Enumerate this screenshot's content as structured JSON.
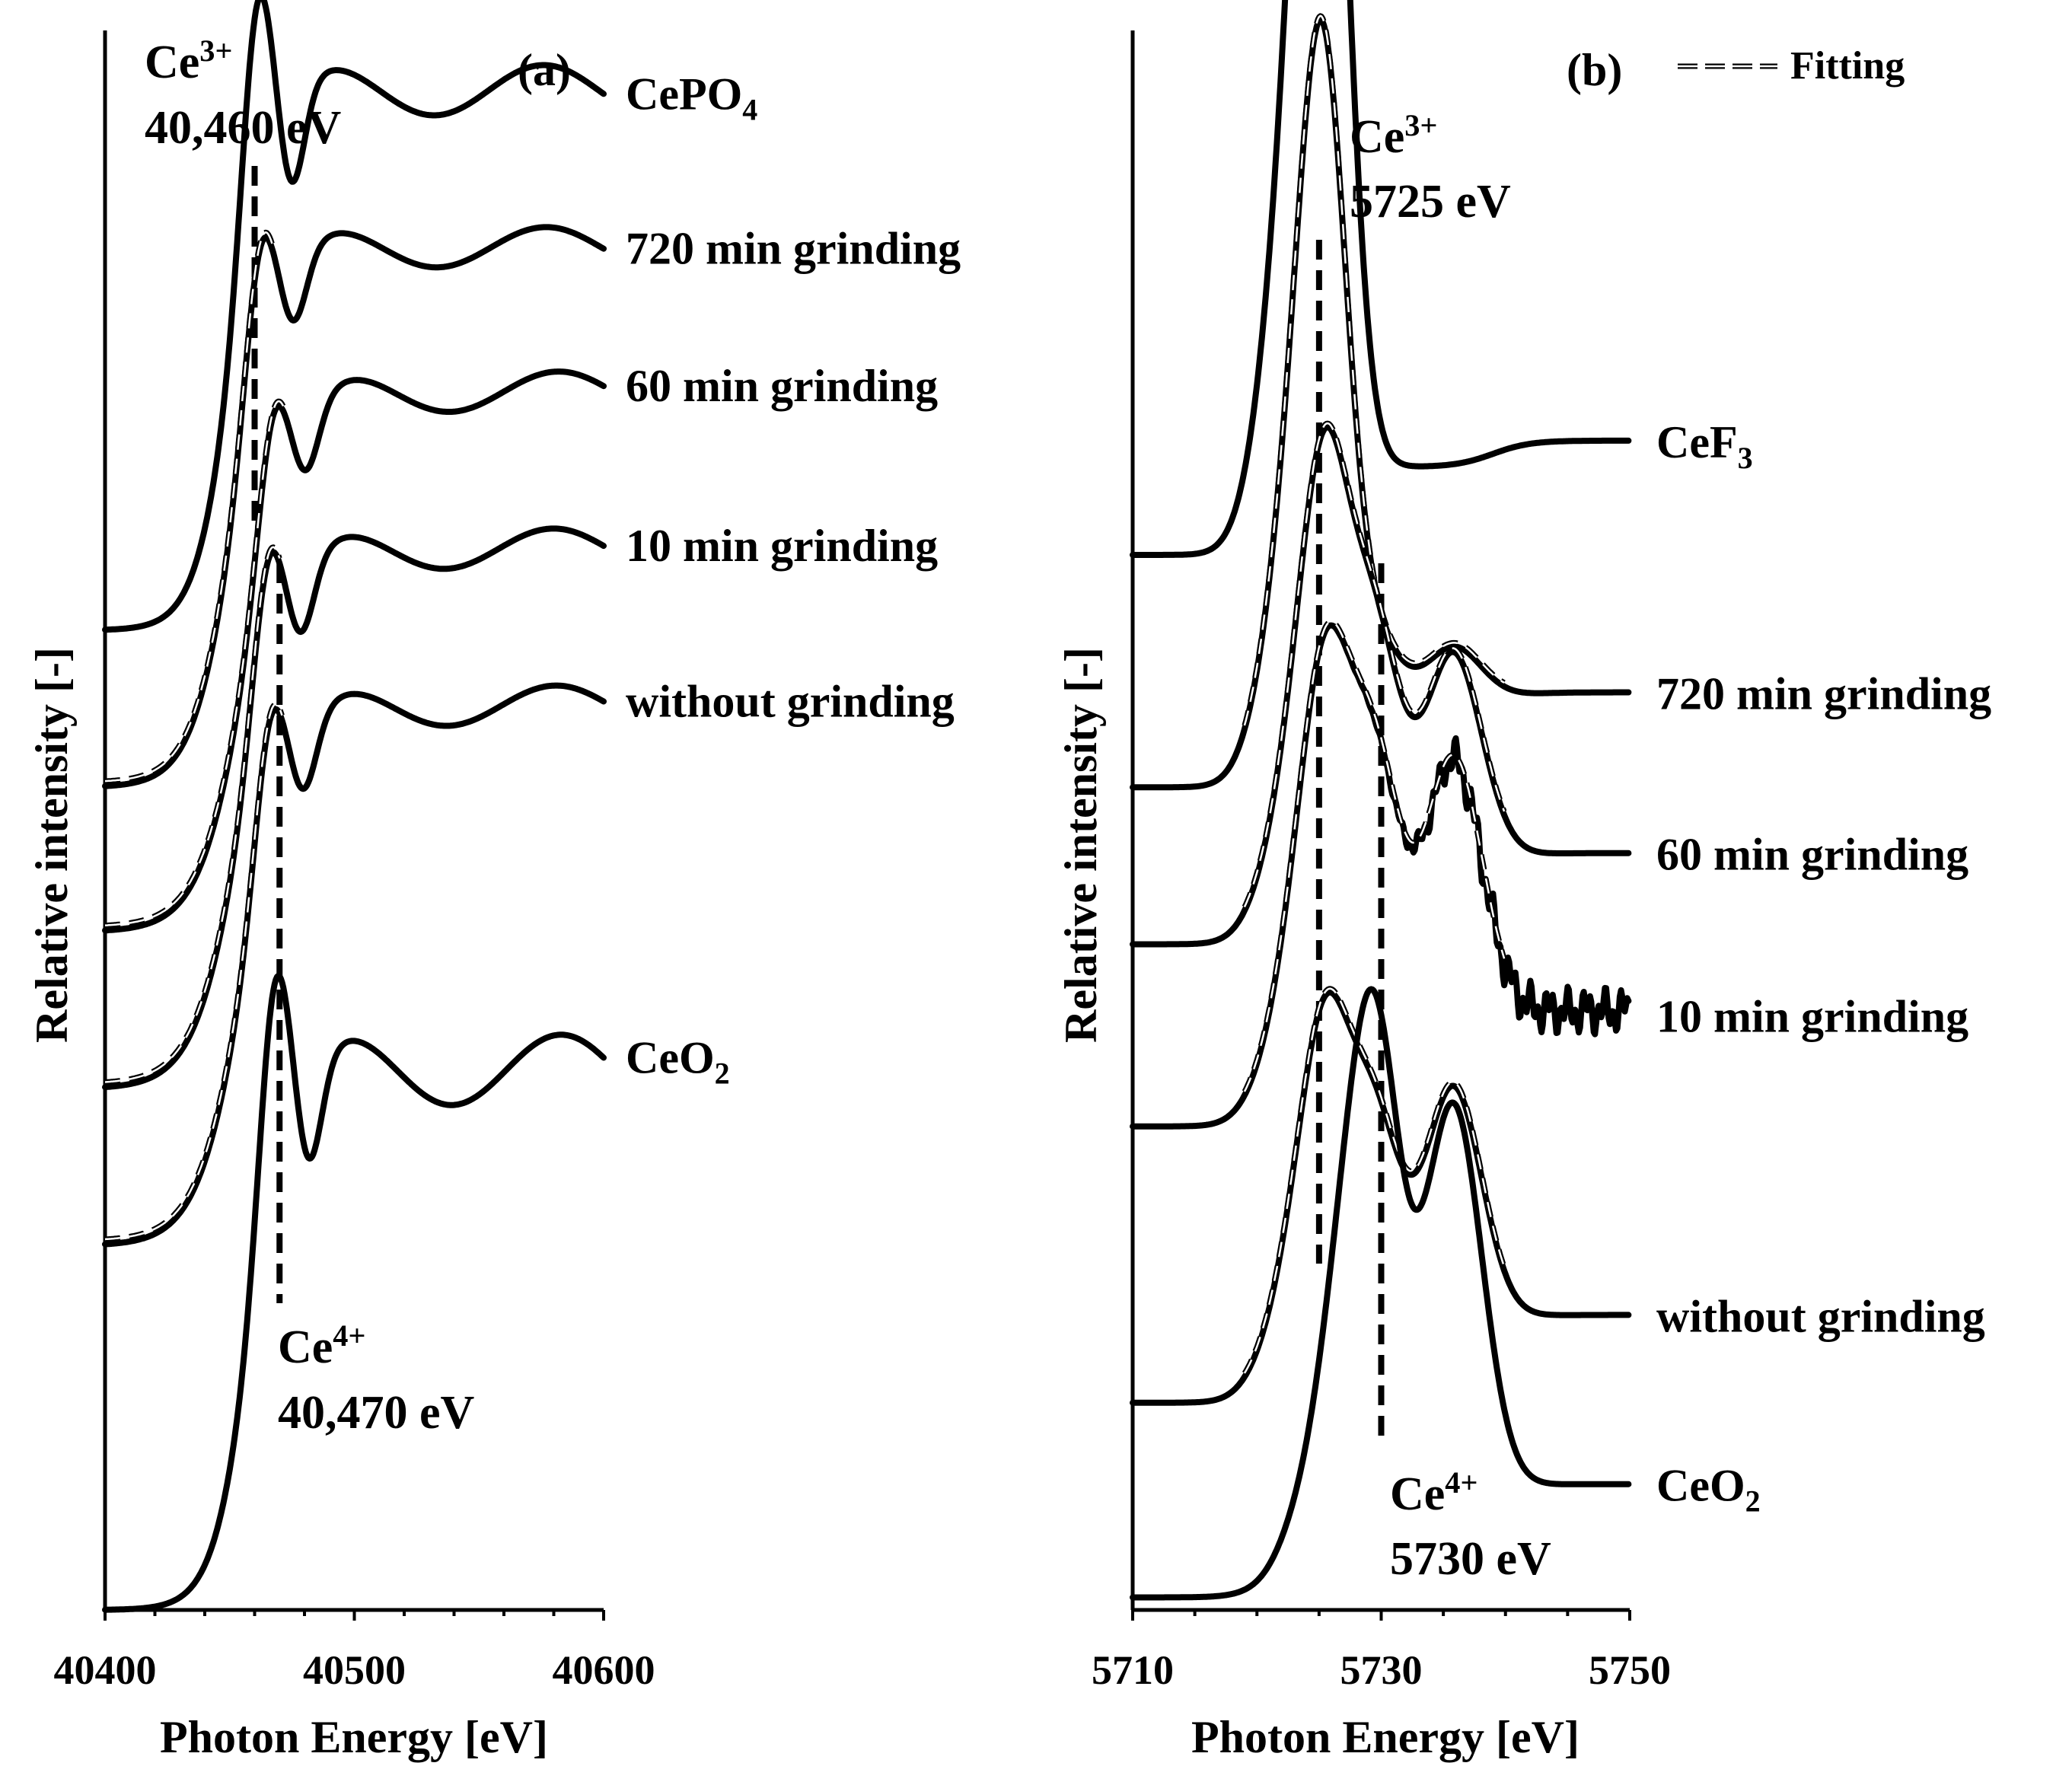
{
  "chart_data": [
    {
      "type": "line",
      "panel_label": "(a)",
      "xlabel": "Photon Energy [eV]",
      "ylabel": "Relative intensity [-]",
      "xlim": [
        40400,
        40600
      ],
      "xticks": [
        "40400",
        "40500",
        "40600"
      ],
      "y_ticks_shown": false,
      "vertical_lines": [
        {
          "name": "Ce3+",
          "sup": "3+",
          "x": 40460,
          "energy_text": "40,460 eV"
        },
        {
          "name": "Ce4+",
          "sup": "4+",
          "x": 40470,
          "energy_text": "40,470 eV"
        }
      ],
      "series": [
        {
          "name": "CePO4",
          "label_main": "CePO",
          "label_sub": "4",
          "fitting": false,
          "baseline": 0.78,
          "edge": 40451,
          "edge_width": 7.5,
          "ripple_amp": 0.05,
          "peak_amp": 0.16
        },
        {
          "name": "720 min grinding",
          "label_main": "720 min grinding",
          "label_sub": "",
          "fitting": true,
          "baseline": 0.655,
          "edge": 40452,
          "edge_width": 8.5,
          "ripple_amp": 0.04,
          "peak_amp": 0.1
        },
        {
          "name": "60 min grinding",
          "label_main": "60 min grinding",
          "label_sub": "",
          "fitting": true,
          "baseline": 0.54,
          "edge": 40457,
          "edge_width": 9.5,
          "ripple_amp": 0.04,
          "peak_amp": 0.09
        },
        {
          "name": "10 min grinding",
          "label_main": "10 min grinding",
          "label_sub": "",
          "fitting": true,
          "baseline": 0.415,
          "edge": 40455,
          "edge_width": 9.5,
          "ripple_amp": 0.04,
          "peak_amp": 0.1
        },
        {
          "name": "without grinding",
          "label_main": "without grinding",
          "label_sub": "",
          "fitting": true,
          "baseline": 0.29,
          "edge": 40456,
          "edge_width": 9.5,
          "ripple_amp": 0.04,
          "peak_amp": 0.1
        },
        {
          "name": "CeO2",
          "label_main": "CeO",
          "label_sub": "2",
          "fitting": false,
          "baseline": 0.0,
          "edge": 40458,
          "edge_width": 7.5,
          "ripple_amp": 0.07,
          "peak_amp": 0.16
        }
      ]
    },
    {
      "type": "line",
      "panel_label": "(b)",
      "legend": {
        "label": "Fitting",
        "placement": "top-right"
      },
      "xlabel": "Photon Energy [eV]",
      "ylabel": "Relative intensity [-]",
      "xlim": [
        5710,
        5750
      ],
      "xticks": [
        "5710",
        "5730",
        "5750"
      ],
      "y_ticks_shown": false,
      "vertical_lines": [
        {
          "name": "Ce3+",
          "sup": "3+",
          "x": 5725,
          "energy_text": "5725 eV"
        },
        {
          "name": "Ce4+",
          "sup": "4+",
          "x": 5730,
          "energy_text": "5730 eV"
        }
      ],
      "series": [
        {
          "name": "CeF3",
          "label_main": "CeF",
          "label_sub": "3",
          "fitting": false,
          "offset": 0.84,
          "amp3": 0.7,
          "amp4": 0.0,
          "amp4b": 0.0,
          "tail": 0.07,
          "noise": 0.0
        },
        {
          "name": "720 min grinding",
          "label_main": "720 min grinding",
          "label_sub": "",
          "fitting": true,
          "offset": 0.655,
          "amp3": 0.47,
          "amp4": 0.05,
          "amp4b": 0.05,
          "tail": 0.06,
          "noise": 0.0
        },
        {
          "name": "60 min grinding",
          "label_main": "60 min grinding",
          "label_sub": "",
          "fitting": true,
          "offset": 0.53,
          "amp3": 0.25,
          "amp4": 0.17,
          "amp4b": 0.17,
          "tail": 0.06,
          "noise": 0.0
        },
        {
          "name": "10 min grinding",
          "label_main": "10 min grinding",
          "label_sub": "",
          "fitting": true,
          "offset": 0.385,
          "amp3": 0.21,
          "amp4": 0.19,
          "amp4b": 0.21,
          "tail": 0.08,
          "noise": 0.02
        },
        {
          "name": "without grinding",
          "label_main": "without grinding",
          "label_sub": "",
          "fitting": true,
          "offset": 0.165,
          "amp3": 0.18,
          "amp4": 0.15,
          "amp4b": 0.19,
          "tail": 0.06,
          "noise": 0.0
        },
        {
          "name": "CeO2",
          "label_main": "CeO",
          "label_sub": "2",
          "fitting": false,
          "offset": 0.01,
          "amp3": 0.0,
          "amp4": 0.34,
          "amp4b": 0.31,
          "tail": 0.08,
          "noise": 0.0
        }
      ]
    }
  ]
}
